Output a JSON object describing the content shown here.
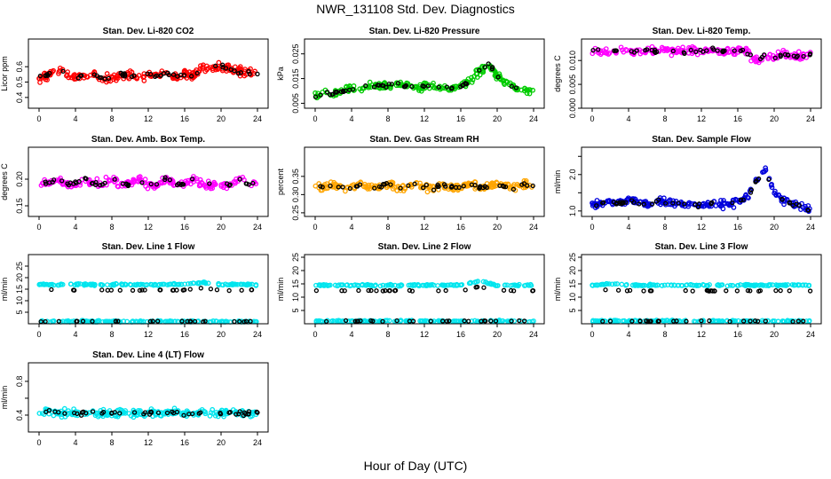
{
  "title": "NWR_131108  Std. Dev. Diagnostics",
  "xlabel": "Hour of Day (UTC)",
  "x_ticks": [
    "0",
    "4",
    "8",
    "12",
    "16",
    "20",
    "24"
  ],
  "chart_data": [
    {
      "type": "scatter",
      "title": "Stan. Dev. Li-820 CO2",
      "ylabel": "Licor ppm",
      "xlim": [
        0,
        24
      ],
      "ylim": [
        0.33,
        0.78
      ],
      "y_ticks": [
        0.4,
        0.5,
        0.6
      ],
      "y_tick_labels": [
        "0.4",
        "0.5",
        "0.6"
      ],
      "color": "#ff0000",
      "series": [
        {
          "x": [
            0,
            1,
            2,
            3,
            4,
            5,
            6,
            7,
            8,
            9,
            10,
            11,
            12,
            13,
            14,
            15,
            16,
            17,
            18,
            19,
            20,
            21,
            22,
            23,
            24
          ],
          "y": [
            0.52,
            0.55,
            0.58,
            0.56,
            0.53,
            0.54,
            0.55,
            0.52,
            0.53,
            0.55,
            0.54,
            0.53,
            0.55,
            0.54,
            0.56,
            0.53,
            0.55,
            0.54,
            0.6,
            0.59,
            0.6,
            0.58,
            0.57,
            0.56,
            0.55
          ]
        }
      ]
    },
    {
      "type": "scatter",
      "title": "Stan. Dev. Li-820 Pressure",
      "ylabel": "kPa",
      "xlim": [
        0,
        24
      ],
      "ylim": [
        0.003,
        0.031
      ],
      "y_ticks": [
        0.005,
        0.015,
        0.025
      ],
      "y_tick_labels": [
        "0.005",
        "0.015",
        "0.025"
      ],
      "color": "#00cc00",
      "series": [
        {
          "x": [
            0,
            1,
            2,
            3,
            4,
            5,
            6,
            7,
            8,
            9,
            10,
            11,
            12,
            13,
            14,
            15,
            16,
            17,
            18,
            19,
            20,
            21,
            22,
            23,
            24
          ],
          "y": [
            0.008,
            0.009,
            0.009,
            0.01,
            0.011,
            0.011,
            0.012,
            0.012,
            0.012,
            0.013,
            0.012,
            0.011,
            0.012,
            0.012,
            0.011,
            0.011,
            0.012,
            0.014,
            0.018,
            0.021,
            0.016,
            0.013,
            0.011,
            0.01,
            0.01
          ]
        }
      ]
    },
    {
      "type": "scatter",
      "title": "Stan. Dev. Li-820 Temp.",
      "ylabel": "degrees C",
      "xlim": [
        0,
        24
      ],
      "ylim": [
        0,
        0.0145
      ],
      "y_ticks": [
        0.0,
        0.005,
        0.01
      ],
      "y_tick_labels": [
        "0.000",
        "0.005",
        "0.010"
      ],
      "color": "#ff00ff",
      "series": [
        {
          "x": [
            0,
            1,
            2,
            3,
            4,
            5,
            6,
            7,
            8,
            9,
            10,
            11,
            12,
            13,
            14,
            15,
            16,
            17,
            18,
            19,
            20,
            21,
            22,
            23,
            24
          ],
          "y": [
            0.012,
            0.0122,
            0.0118,
            0.0121,
            0.012,
            0.0119,
            0.0121,
            0.012,
            0.0122,
            0.012,
            0.0119,
            0.0121,
            0.012,
            0.0121,
            0.0119,
            0.012,
            0.0121,
            0.0118,
            0.01,
            0.011,
            0.0105,
            0.0115,
            0.011,
            0.0108,
            0.0112
          ]
        }
      ]
    },
    {
      "type": "scatter",
      "title": "Stan. Dev. Amb. Box Temp.",
      "ylabel": "degrees C",
      "xlim": [
        0,
        24
      ],
      "ylim": [
        0.13,
        0.26
      ],
      "y_ticks": [
        0.15,
        0.2
      ],
      "y_tick_labels": [
        "0.15",
        "0.20"
      ],
      "color": "#ff00ff",
      "series": [
        {
          "x": [
            0,
            1,
            2,
            3,
            4,
            5,
            6,
            7,
            8,
            9,
            10,
            11,
            12,
            13,
            14,
            15,
            16,
            17,
            18,
            19,
            20,
            21,
            22,
            23,
            24
          ],
          "y": [
            0.19,
            0.19,
            0.2,
            0.19,
            0.19,
            0.2,
            0.19,
            0.19,
            0.2,
            0.19,
            0.19,
            0.2,
            0.19,
            0.19,
            0.2,
            0.19,
            0.19,
            0.2,
            0.19,
            0.19,
            0.19,
            0.19,
            0.2,
            0.19,
            0.19
          ]
        }
      ]
    },
    {
      "type": "scatter",
      "title": "Stan. Dev. Gas Stream RH",
      "ylabel": "percent",
      "xlim": [
        0,
        24
      ],
      "ylim": [
        0.24,
        0.43
      ],
      "y_ticks": [
        0.25,
        0.3,
        0.35
      ],
      "y_tick_labels": [
        "0.25",
        "0.30",
        "0.35"
      ],
      "color": "#ffa500",
      "series": [
        {
          "x": [
            0,
            1,
            2,
            3,
            4,
            5,
            6,
            7,
            8,
            9,
            10,
            11,
            12,
            13,
            14,
            15,
            16,
            17,
            18,
            19,
            20,
            21,
            22,
            23,
            24
          ],
          "y": [
            0.32,
            0.32,
            0.33,
            0.32,
            0.32,
            0.33,
            0.32,
            0.32,
            0.33,
            0.32,
            0.32,
            0.33,
            0.32,
            0.32,
            0.33,
            0.32,
            0.32,
            0.33,
            0.32,
            0.32,
            0.33,
            0.32,
            0.32,
            0.33,
            0.32
          ]
        }
      ]
    },
    {
      "type": "scatter",
      "title": "Stan. Dev. Sample Flow",
      "ylabel": "ml/min",
      "xlim": [
        0,
        24
      ],
      "ylim": [
        0.85,
        2.75
      ],
      "y_ticks": [
        1.0,
        1.5,
        2.0,
        2.5
      ],
      "y_tick_labels": [
        "1.0",
        "",
        "2.0",
        ""
      ],
      "color": "#0000dd",
      "series": [
        {
          "x": [
            0,
            1,
            2,
            3,
            4,
            5,
            6,
            7,
            8,
            9,
            10,
            11,
            12,
            13,
            14,
            15,
            16,
            17,
            18,
            19,
            20,
            21,
            22,
            23,
            24
          ],
          "y": [
            1.15,
            1.2,
            1.25,
            1.2,
            1.3,
            1.25,
            1.2,
            1.25,
            1.25,
            1.2,
            1.2,
            1.2,
            1.15,
            1.2,
            1.2,
            1.2,
            1.25,
            1.4,
            1.8,
            2.1,
            1.5,
            1.3,
            1.2,
            1.15,
            1.0
          ]
        }
      ]
    },
    {
      "type": "scatter",
      "title": "Stan. Dev. Line 1 Flow",
      "ylabel": "ml/min",
      "xlim": [
        0,
        24
      ],
      "ylim": [
        0,
        30
      ],
      "y_ticks": [
        5,
        10,
        15,
        20,
        25
      ],
      "y_tick_labels": [
        "5",
        "10",
        "15",
        "20",
        "25"
      ],
      "color": "#00e5ee",
      "series": [
        {
          "x": [
            0,
            2,
            4,
            6,
            8,
            10,
            12,
            14,
            16,
            18,
            20,
            22,
            24
          ],
          "y": [
            17,
            17,
            17,
            17,
            17,
            17,
            17,
            17,
            17,
            18,
            17,
            17,
            17
          ]
        },
        {
          "x": [
            0,
            2,
            4,
            6,
            8,
            10,
            12,
            14,
            16,
            18,
            20,
            22,
            24
          ],
          "y": [
            1,
            1,
            1,
            1,
            1,
            1,
            1,
            1,
            1,
            1,
            1,
            1,
            1
          ]
        }
      ]
    },
    {
      "type": "scatter",
      "title": "Stan. Dev. Line 2 Flow",
      "ylabel": "ml/min",
      "xlim": [
        0,
        24
      ],
      "ylim": [
        0,
        26
      ],
      "y_ticks": [
        5,
        10,
        15,
        20,
        25
      ],
      "y_tick_labels": [
        "5",
        "10",
        "15",
        "20",
        "25"
      ],
      "color": "#00e5ee",
      "series": [
        {
          "x": [
            0,
            2,
            4,
            6,
            8,
            10,
            12,
            14,
            16,
            18,
            20,
            22,
            24
          ],
          "y": [
            14.5,
            14.5,
            14.5,
            14.5,
            14.5,
            14.5,
            14.5,
            14.5,
            14.5,
            16,
            14.5,
            14.5,
            14.5
          ]
        },
        {
          "x": [
            0,
            2,
            4,
            6,
            8,
            10,
            12,
            14,
            16,
            18,
            20,
            22,
            24
          ],
          "y": [
            1,
            1,
            1,
            1,
            1,
            1,
            1,
            1,
            1,
            1,
            1,
            1,
            1
          ]
        }
      ]
    },
    {
      "type": "scatter",
      "title": "Stan. Dev. Line 3 Flow",
      "ylabel": "ml/min",
      "xlim": [
        0,
        24
      ],
      "ylim": [
        0,
        26
      ],
      "y_ticks": [
        5,
        10,
        15,
        20,
        25
      ],
      "y_tick_labels": [
        "5",
        "10",
        "15",
        "20",
        "25"
      ],
      "color": "#00e5ee",
      "series": [
        {
          "x": [
            0,
            2,
            4,
            6,
            8,
            10,
            12,
            14,
            16,
            18,
            20,
            22,
            24
          ],
          "y": [
            14.5,
            15,
            14.5,
            14.5,
            14.5,
            14.5,
            14.5,
            14.5,
            14.5,
            14.5,
            14.5,
            14.5,
            14.5
          ]
        },
        {
          "x": [
            0,
            2,
            4,
            6,
            8,
            10,
            12,
            14,
            16,
            18,
            20,
            22,
            24
          ],
          "y": [
            1,
            1,
            1,
            1,
            1,
            1,
            1,
            1,
            1,
            1,
            1,
            1,
            1
          ]
        }
      ]
    },
    {
      "type": "scatter",
      "title": "Stan. Dev. Line 4 (LT) Flow",
      "ylabel": "ml/min",
      "xlim": [
        0,
        24
      ],
      "ylim": [
        0.2,
        1.02
      ],
      "y_ticks": [
        0.4,
        0.6,
        0.8
      ],
      "y_tick_labels": [
        "0.4",
        "",
        "0.8"
      ],
      "color": "#00e5ee",
      "series": [
        {
          "x": [
            0,
            1,
            2,
            3,
            4,
            5,
            6,
            7,
            8,
            9,
            10,
            11,
            12,
            13,
            14,
            15,
            16,
            17,
            18,
            19,
            20,
            21,
            22,
            23,
            24
          ],
          "y": [
            0.42,
            0.44,
            0.43,
            0.42,
            0.43,
            0.42,
            0.42,
            0.43,
            0.42,
            0.43,
            0.42,
            0.42,
            0.43,
            0.42,
            0.42,
            0.43,
            0.42,
            0.42,
            0.43,
            0.42,
            0.42,
            0.43,
            0.42,
            0.42,
            0.43
          ]
        }
      ]
    }
  ]
}
